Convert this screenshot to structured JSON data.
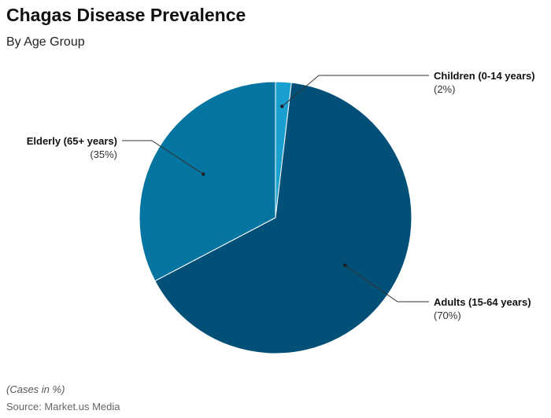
{
  "header": {
    "title": "Chagas Disease Prevalence",
    "subtitle": "By Age Group"
  },
  "footer": {
    "note": "(Cases in %)",
    "source": "Source: Market.us Media"
  },
  "chart_data": {
    "type": "pie",
    "title": "Chagas Disease Prevalence",
    "subtitle": "By Age Group",
    "slices": [
      {
        "label": "Children (0-14 years)",
        "display": "(2%)",
        "value": 2,
        "color": "#1a9fd1"
      },
      {
        "label": "Adults (15-64 years)",
        "display": "(70%)",
        "value": 70,
        "color": "#024f78"
      },
      {
        "label": "Elderly (65+ years)",
        "display": "(35%)",
        "value": 35,
        "color": "#0475a0"
      }
    ]
  }
}
